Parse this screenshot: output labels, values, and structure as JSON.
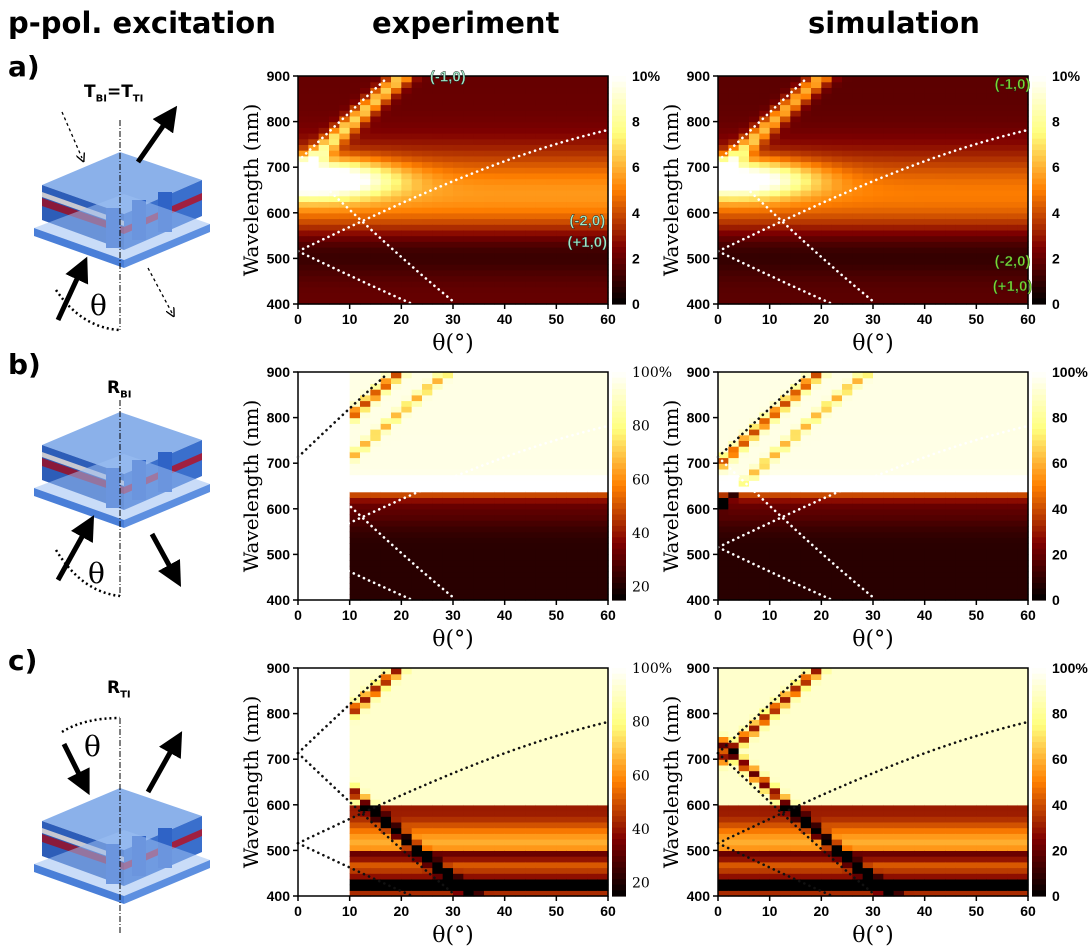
{
  "header": {
    "left": "p-pol. excitation",
    "middle": "experiment",
    "right": "simulation"
  },
  "rows": [
    {
      "label": "a)",
      "cond_main": "T",
      "cond_sub": "BI",
      "cond_eq": "=T",
      "cond_sub2": "TI",
      "angle_symbol": "θ"
    },
    {
      "label": "b)",
      "cond_main": "R",
      "cond_sub": "BI",
      "cond_eq": "",
      "cond_sub2": "",
      "angle_symbol": "θ"
    },
    {
      "label": "c)",
      "cond_main": "R",
      "cond_sub": "TI",
      "cond_eq": "",
      "cond_sub2": "",
      "angle_symbol": "θ"
    }
  ],
  "chart_data": [
    {
      "type": "heatmap",
      "panel": "a-experiment",
      "xlabel": "θ(°)",
      "ylabel": "Wavelength (nm)",
      "xlim": [
        0,
        60
      ],
      "ylim": [
        400,
        900
      ],
      "xticks": [
        "0",
        "10",
        "20",
        "30",
        "40",
        "50",
        "60"
      ],
      "yticks": [
        "400",
        "500",
        "600",
        "700",
        "800",
        "900"
      ],
      "colorbar": {
        "ticks": [
          "10%",
          "8",
          "6",
          "4",
          "2",
          "0"
        ],
        "range": [
          0,
          10
        ],
        "style": "bold"
      },
      "colormap": "afmhot",
      "annotations": [
        {
          "text": "(-1,0)",
          "x": 29,
          "y": 888
        },
        {
          "text": "(-2,0)",
          "x": 56,
          "y": 572
        },
        {
          "text": "(+1,0)",
          "x": 56,
          "y": 525
        }
      ],
      "dotted_line_color": "#ffffff",
      "data_start_theta": 0
    },
    {
      "type": "heatmap",
      "panel": "a-simulation",
      "xlabel": "θ(°)",
      "ylabel": "Wavelength (nm)",
      "xlim": [
        0,
        60
      ],
      "ylim": [
        400,
        900
      ],
      "xticks": [
        "0",
        "10",
        "20",
        "30",
        "40",
        "50",
        "60"
      ],
      "yticks": [
        "400",
        "500",
        "600",
        "700",
        "800",
        "900"
      ],
      "colorbar": {
        "ticks": [
          "10%",
          "8",
          "6",
          "4",
          "2",
          "0"
        ],
        "range": [
          0,
          10
        ],
        "style": "bold"
      },
      "colormap": "afmhot",
      "annotations": [
        {
          "text": "(-1,0)",
          "x": 57,
          "y": 872
        },
        {
          "text": "(-2,0)",
          "x": 57,
          "y": 483
        },
        {
          "text": "(+1,0)",
          "x": 57,
          "y": 428
        }
      ],
      "dotted_line_color": "#ffffff",
      "data_start_theta": 0
    },
    {
      "type": "heatmap",
      "panel": "b-experiment",
      "xlabel": "θ(°)",
      "ylabel": "Wavelength (nm)",
      "xlim": [
        0,
        60
      ],
      "ylim": [
        400,
        900
      ],
      "xticks": [
        "0",
        "10",
        "20",
        "30",
        "40",
        "50",
        "60"
      ],
      "yticks": [
        "400",
        "500",
        "600",
        "700",
        "800",
        "900"
      ],
      "colorbar": {
        "ticks": [
          "100%",
          "80",
          "60",
          "40",
          "20"
        ],
        "range": [
          15,
          100
        ],
        "style": "serif"
      },
      "colormap": "afmhot",
      "annotations": [],
      "dotted_line_color": "mixed",
      "data_start_theta": 10
    },
    {
      "type": "heatmap",
      "panel": "b-simulation",
      "xlabel": "θ(°)",
      "ylabel": "Wavelength (nm)",
      "xlim": [
        0,
        60
      ],
      "ylim": [
        400,
        900
      ],
      "xticks": [
        "0",
        "10",
        "20",
        "30",
        "40",
        "50",
        "60"
      ],
      "yticks": [
        "400",
        "500",
        "600",
        "700",
        "800",
        "900"
      ],
      "colorbar": {
        "ticks": [
          "100%",
          "80",
          "60",
          "40",
          "20",
          "0"
        ],
        "range": [
          0,
          100
        ],
        "style": "bold"
      },
      "colormap": "afmhot",
      "annotations": [],
      "dotted_line_color": "mixed",
      "data_start_theta": 0
    },
    {
      "type": "heatmap",
      "panel": "c-experiment",
      "xlabel": "θ(°)",
      "ylabel": "Wavelength (nm)",
      "xlim": [
        0,
        60
      ],
      "ylim": [
        400,
        900
      ],
      "xticks": [
        "0",
        "10",
        "20",
        "30",
        "40",
        "50",
        "60"
      ],
      "yticks": [
        "400",
        "500",
        "600",
        "700",
        "800",
        "900"
      ],
      "colorbar": {
        "ticks": [
          "100%",
          "80",
          "60",
          "40",
          "20"
        ],
        "range": [
          15,
          100
        ],
        "style": "serif"
      },
      "colormap": "afmhot",
      "annotations": [],
      "dotted_line_color": "mixed",
      "data_start_theta": 10
    },
    {
      "type": "heatmap",
      "panel": "c-simulation",
      "xlabel": "θ(°)",
      "ylabel": "Wavelength (nm)",
      "xlim": [
        0,
        60
      ],
      "ylim": [
        400,
        900
      ],
      "xticks": [
        "0",
        "10",
        "20",
        "30",
        "40",
        "50",
        "60"
      ],
      "yticks": [
        "400",
        "500",
        "600",
        "700",
        "800",
        "900"
      ],
      "colorbar": {
        "ticks": [
          "100%",
          "80",
          "60",
          "40",
          "20",
          "0"
        ],
        "range": [
          0,
          100
        ],
        "style": "bold"
      },
      "colormap": "afmhot",
      "annotations": [],
      "dotted_line_color": "mixed",
      "data_start_theta": 0
    }
  ]
}
